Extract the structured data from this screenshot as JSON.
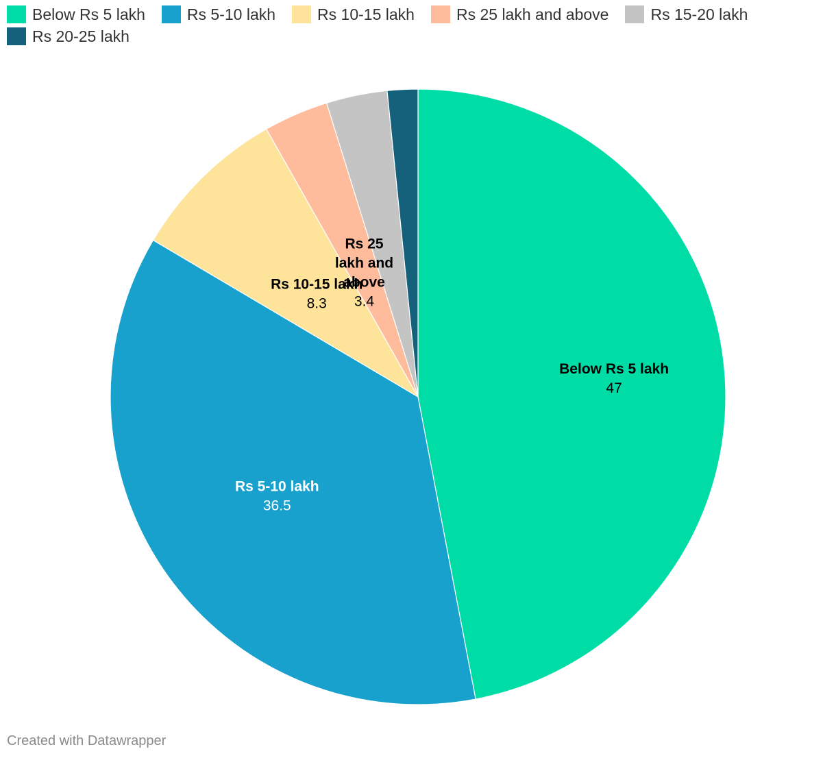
{
  "chart_data": {
    "type": "pie",
    "categories": [
      "Below Rs 5 lakh",
      "Rs 5-10 lakh",
      "Rs 10-15 lakh",
      "Rs 25 lakh and above",
      "Rs 15-20 lakh",
      "Rs 20-25 lakh"
    ],
    "values": [
      47,
      36.5,
      8.3,
      3.4,
      3.2,
      1.6
    ],
    "value_labels": [
      "47",
      "36.5",
      "8.3",
      "3.4",
      "",
      ""
    ],
    "colors": [
      "#00dca5",
      "#19a1cd",
      "#fee39b",
      "#ffbc9c",
      "#c4c4c4",
      "#15607a"
    ],
    "label_colors": [
      "#000000",
      "#ffffff",
      "#000000",
      "#000000",
      "#000000",
      "#000000"
    ],
    "legend_placement": "top-left",
    "title": "",
    "xlabel": "",
    "ylabel": ""
  },
  "footer": {
    "credit": "Created with Datawrapper"
  }
}
